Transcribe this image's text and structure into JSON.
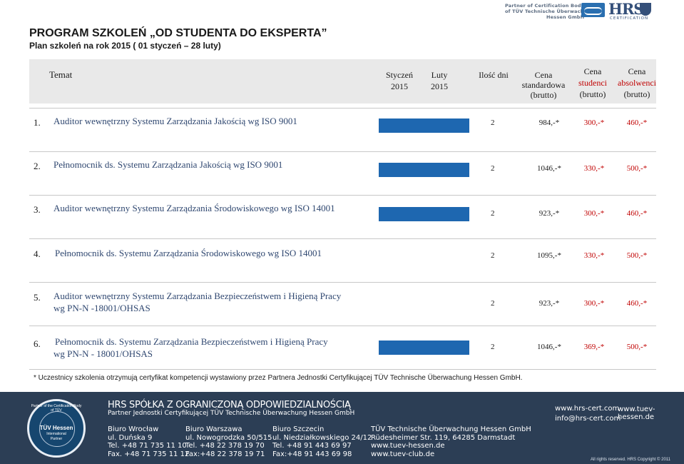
{
  "branding": {
    "partner_line1": "Partner of Certification Body",
    "partner_line2": "of TÜV Technische Überwachung",
    "partner_line3": "Hessen GmbH",
    "hrs_letters": "HRS",
    "hrs_cert": "CERTIFICATION"
  },
  "page": {
    "title": "PROGRAM SZKOLEŃ „OD STUDENTA DO EKSPERTA”",
    "subtitle": "Plan szkoleń na rok 2015 ( 01 styczeń – 28 luty)"
  },
  "table_header": {
    "topic": "Temat",
    "january_l1": "Styczeń",
    "january_l2": "2015",
    "february_l1": "Luty",
    "february_l2": "2015",
    "days": "Ilość dni",
    "std_l1": "Cena",
    "std_l2": "standardowa",
    "std_l3": "(brutto)",
    "stu_l1": "Cena",
    "stu_l2": "studenci",
    "stu_l3": "(brutto)",
    "abs_l1": "Cena",
    "abs_l2": "absolwenci",
    "abs_l3": "(brutto)"
  },
  "courses": [
    {
      "num": "1.",
      "title": "Auditor wewnętrzny Systemu Zarządzania Jakością wg ISO 9001",
      "days": "2",
      "price_std": "984,-*",
      "price_students": "300,-*",
      "price_graduates": "460,-*"
    },
    {
      "num": "2.",
      "title": "Pełnomocnik ds. Systemu Zarządzania Jakością wg ISO 9001",
      "days": "2",
      "price_std": "1046,-*",
      "price_students": "330,-*",
      "price_graduates": "500,-*"
    },
    {
      "num": "3.",
      "title": "Auditor wewnętrzny Systemu Zarządzania Środowiskowego wg ISO 14001",
      "days": "2",
      "price_std": "923,-*",
      "price_students": "300,-*",
      "price_graduates": "460,-*"
    },
    {
      "num": "4.",
      "title": "Pełnomocnik ds. Systemu Zarządzania Środowiskowego wg ISO 14001",
      "days": "2",
      "price_std": "1095,-*",
      "price_students": "330,-*",
      "price_graduates": "500,-*"
    },
    {
      "num": "5.",
      "title_l1": "Auditor wewnętrzny Systemu Zarządzania Bezpieczeństwem i Higieną Pracy",
      "title_l2": "wg PN-N -18001/OHSAS",
      "days": "2",
      "price_std": "923,-*",
      "price_students": "300,-*",
      "price_graduates": "460,-*"
    },
    {
      "num": "6.",
      "title_l1": "Pełnomocnik ds. Systemu Zarządzania Bezpieczeństwem i Higieną Pracy",
      "title_l2": "wg PN-N - 18001/OHSAS",
      "days": "2",
      "price_std": "1046,-*",
      "price_students": "369,-*",
      "price_graduates": "500,-*"
    }
  ],
  "footnote": "* Uczestnicy szkolenia otrzymują certyfikat kompetencji wystawiony przez Partnera Jednostki Certyfikującej TÜV Technische Überwachung Hessen GmbH.",
  "footer": {
    "seal_ring": "Partner of the Certification Body of TÜV",
    "seal_name": "TÜV Hessen",
    "seal_sub1": "International",
    "seal_sub2": "Partner",
    "company": "HRS SPÓŁKA Z OGRANICZONĄ ODPOWIEDZIALNOŚCIĄ",
    "company_sub": "Partner Jednostki Certyfikującej TÜV Technische Überwachung Hessen GmbH",
    "offices": [
      {
        "name": "Biuro Wrocław",
        "street": "ul. Duńska 9",
        "tel": "Tel. +48 71 735 11 10",
        "fax": "Fax. +48 71 735 11 12"
      },
      {
        "name": "Biuro Warszawa",
        "street": "ul. Nowogrodzka 50/515",
        "tel": "Tel. +48 22 378 19 70",
        "fax": "Fax:+48 22 378 19 71"
      },
      {
        "name": "Biuro Szczecin",
        "street": "ul. Niedziałkowskiego 24/12",
        "tel": "Tel. +48 91 443 69 97",
        "fax": "Fax:+48 91 443 69 98"
      },
      {
        "name": "TÜV Technische Überwachung Hessen GmbH",
        "street": "Rüdesheimer Str. 119, 64285 Darmstadt",
        "tel": "www.tuev-hessen.de",
        "fax": "www.tuev-club.de"
      }
    ],
    "web_hrs": "www.hrs-cert.com",
    "email_hrs": "info@hrs-cert.com",
    "web_tuev": "www.tuev-hessen.de",
    "rights": "All rights reserved. HRS Copyright © 2011"
  }
}
